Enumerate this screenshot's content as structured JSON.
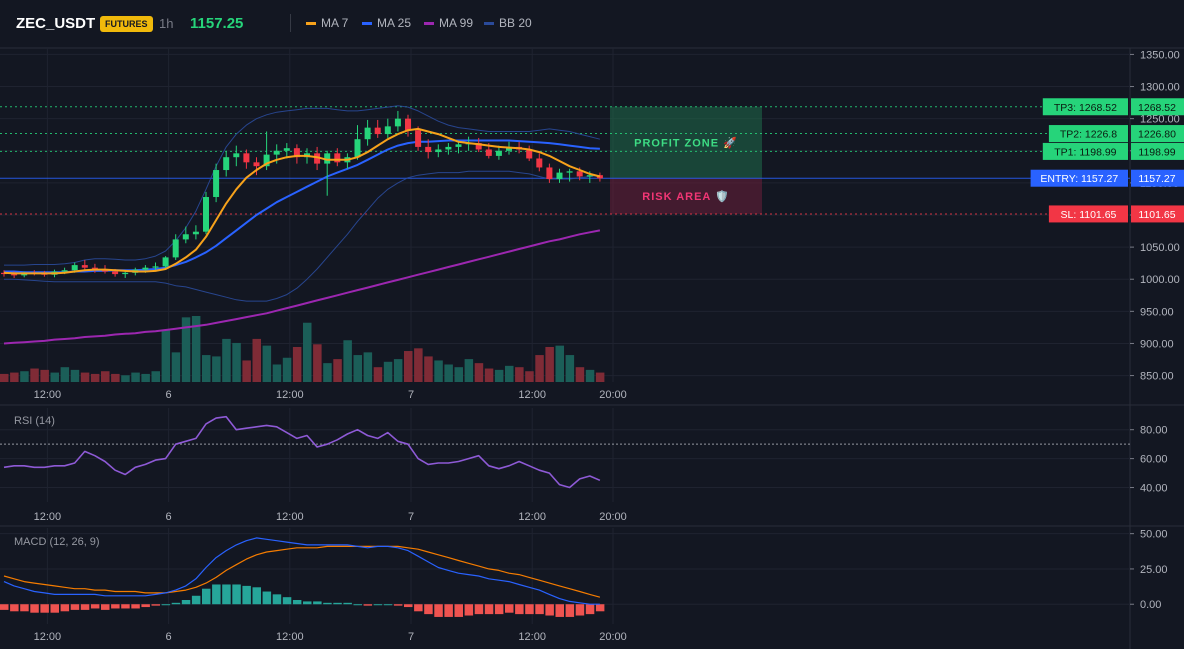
{
  "header": {
    "symbol": "ZEC_USDT",
    "badge": "FUTURES",
    "interval": "1h",
    "last_price": "1157.25",
    "legend": [
      {
        "label": "MA 7",
        "color": "#f7a21b"
      },
      {
        "label": "MA 25",
        "color": "#2962ff"
      },
      {
        "label": "MA 99",
        "color": "#9c27b0"
      },
      {
        "label": "BB 20",
        "color": "#2a4a9a"
      }
    ]
  },
  "colors": {
    "up": "#26d47a",
    "down": "#f23645",
    "vol_up": "#1b5e58",
    "vol_down": "#7f2b36",
    "grid": "#1f2330"
  },
  "chart_data": [
    {
      "type": "candlestick",
      "panel": "price",
      "ylim": [
        840,
        1360
      ],
      "y_ticks": [
        "1350.00",
        "1300.00",
        "1250.00",
        "1200.00",
        "1150.00",
        "1100.00",
        "1050.00",
        "1000.00",
        "950.00",
        "900.00",
        "850.00"
      ],
      "y_tick_values": [
        1350,
        1300,
        1250,
        1200,
        1150,
        1100,
        1050,
        1000,
        950,
        900,
        850
      ],
      "x_ticks": [
        {
          "label": "12:00",
          "index": 4
        },
        {
          "label": "6",
          "index": 16
        },
        {
          "label": "12:00",
          "index": 28
        },
        {
          "label": "7",
          "index": 40
        },
        {
          "label": "12:00",
          "index": 52
        },
        {
          "label": "20:00",
          "index": 60
        }
      ],
      "candles_ohlc": [
        [
          1010,
          1014,
          1004,
          1008
        ],
        [
          1008,
          1012,
          1002,
          1006
        ],
        [
          1006,
          1012,
          1003,
          1010
        ],
        [
          1010,
          1014,
          1006,
          1009
        ],
        [
          1009,
          1013,
          1004,
          1007
        ],
        [
          1007,
          1015,
          1003,
          1012
        ],
        [
          1012,
          1018,
          1008,
          1014
        ],
        [
          1014,
          1026,
          1010,
          1022
        ],
        [
          1022,
          1030,
          1014,
          1018
        ],
        [
          1018,
          1024,
          1010,
          1016
        ],
        [
          1016,
          1022,
          1009,
          1012
        ],
        [
          1012,
          1016,
          1004,
          1008
        ],
        [
          1008,
          1014,
          1002,
          1010
        ],
        [
          1010,
          1018,
          1006,
          1015
        ],
        [
          1015,
          1022,
          1010,
          1018
        ],
        [
          1018,
          1026,
          1012,
          1020
        ],
        [
          1020,
          1036,
          1016,
          1034
        ],
        [
          1034,
          1070,
          1030,
          1062
        ],
        [
          1062,
          1082,
          1056,
          1070
        ],
        [
          1070,
          1084,
          1062,
          1074
        ],
        [
          1074,
          1136,
          1070,
          1128
        ],
        [
          1128,
          1180,
          1120,
          1170
        ],
        [
          1170,
          1200,
          1160,
          1190
        ],
        [
          1190,
          1208,
          1176,
          1196
        ],
        [
          1196,
          1202,
          1172,
          1182
        ],
        [
          1182,
          1190,
          1162,
          1176
        ],
        [
          1176,
          1230,
          1170,
          1194
        ],
        [
          1194,
          1210,
          1180,
          1200
        ],
        [
          1200,
          1212,
          1188,
          1204
        ],
        [
          1204,
          1210,
          1180,
          1190
        ],
        [
          1190,
          1204,
          1180,
          1196
        ],
        [
          1196,
          1206,
          1170,
          1180
        ],
        [
          1180,
          1200,
          1130,
          1196
        ],
        [
          1196,
          1204,
          1176,
          1182
        ],
        [
          1182,
          1196,
          1172,
          1190
        ],
        [
          1190,
          1240,
          1186,
          1218
        ],
        [
          1218,
          1248,
          1208,
          1236
        ],
        [
          1236,
          1248,
          1220,
          1226
        ],
        [
          1226,
          1250,
          1220,
          1238
        ],
        [
          1238,
          1262,
          1230,
          1250
        ],
        [
          1250,
          1256,
          1222,
          1232
        ],
        [
          1232,
          1238,
          1200,
          1206
        ],
        [
          1206,
          1218,
          1188,
          1198
        ],
        [
          1198,
          1210,
          1190,
          1202
        ],
        [
          1202,
          1212,
          1194,
          1206
        ],
        [
          1206,
          1216,
          1196,
          1210
        ],
        [
          1210,
          1222,
          1200,
          1212
        ],
        [
          1212,
          1220,
          1198,
          1202
        ],
        [
          1202,
          1212,
          1188,
          1192
        ],
        [
          1192,
          1208,
          1186,
          1200
        ],
        [
          1200,
          1214,
          1194,
          1206
        ],
        [
          1206,
          1214,
          1196,
          1202
        ],
        [
          1202,
          1208,
          1184,
          1188
        ],
        [
          1188,
          1196,
          1168,
          1174
        ],
        [
          1174,
          1180,
          1150,
          1156
        ],
        [
          1156,
          1172,
          1150,
          1166
        ],
        [
          1166,
          1172,
          1152,
          1168
        ],
        [
          1168,
          1174,
          1154,
          1160
        ],
        [
          1160,
          1168,
          1150,
          1162
        ],
        [
          1162,
          1166,
          1152,
          1157
        ]
      ],
      "volume": [
        12,
        14,
        16,
        20,
        18,
        14,
        22,
        18,
        14,
        12,
        16,
        12,
        10,
        14,
        12,
        16,
        78,
        44,
        96,
        98,
        40,
        38,
        64,
        58,
        32,
        64,
        54,
        26,
        36,
        52,
        88,
        56,
        28,
        34,
        62,
        40,
        44,
        22,
        30,
        34,
        46,
        50,
        38,
        32,
        26,
        22,
        34,
        28,
        20,
        18,
        24,
        22,
        16,
        40,
        52,
        54,
        40,
        22,
        18,
        14
      ],
      "lines": {
        "MA 7": [
          1010,
          1009,
          1009,
          1009,
          1009,
          1009,
          1010,
          1012,
          1014,
          1015,
          1015,
          1014,
          1013,
          1012,
          1012,
          1013,
          1016,
          1024,
          1034,
          1046,
          1066,
          1092,
          1118,
          1140,
          1158,
          1170,
          1180,
          1186,
          1190,
          1192,
          1192,
          1190,
          1186,
          1186,
          1186,
          1190,
          1198,
          1208,
          1218,
          1226,
          1232,
          1234,
          1230,
          1226,
          1220,
          1214,
          1212,
          1210,
          1208,
          1206,
          1205,
          1204,
          1202,
          1198,
          1192,
          1184,
          1176,
          1170,
          1164,
          1160
        ],
        "MA 25": [
          1012,
          1012,
          1011,
          1011,
          1011,
          1011,
          1011,
          1012,
          1012,
          1013,
          1013,
          1014,
          1014,
          1014,
          1015,
          1016,
          1018,
          1022,
          1027,
          1034,
          1042,
          1052,
          1064,
          1076,
          1088,
          1100,
          1110,
          1120,
          1128,
          1136,
          1144,
          1152,
          1160,
          1166,
          1172,
          1178,
          1186,
          1194,
          1202,
          1208,
          1212,
          1214,
          1214,
          1215,
          1216,
          1216,
          1216,
          1216,
          1216,
          1216,
          1216,
          1215,
          1214,
          1213,
          1212,
          1210,
          1208,
          1206,
          1204,
          1203
        ],
        "MA 99": [
          900,
          901,
          902,
          903,
          904,
          906,
          907,
          908,
          910,
          911,
          912,
          914,
          915,
          916,
          918,
          919,
          921,
          923,
          925,
          927,
          929,
          932,
          935,
          938,
          941,
          944,
          947,
          951,
          955,
          959,
          963,
          967,
          971,
          975,
          979,
          983,
          987,
          991,
          995,
          999,
          1003,
          1007,
          1011,
          1015,
          1019,
          1023,
          1027,
          1031,
          1035,
          1039,
          1043,
          1047,
          1051,
          1055,
          1059,
          1062,
          1066,
          1070,
          1073,
          1076
        ],
        "BB upper": [
          1022,
          1022,
          1022,
          1023,
          1023,
          1023,
          1024,
          1026,
          1030,
          1032,
          1032,
          1031,
          1030,
          1030,
          1032,
          1036,
          1044,
          1060,
          1080,
          1106,
          1140,
          1176,
          1206,
          1226,
          1240,
          1250,
          1256,
          1260,
          1262,
          1264,
          1266,
          1266,
          1266,
          1264,
          1262,
          1262,
          1264,
          1266,
          1268,
          1270,
          1268,
          1262,
          1254,
          1246,
          1240,
          1236,
          1234,
          1232,
          1230,
          1230,
          1230,
          1230,
          1230,
          1232,
          1234,
          1232,
          1230,
          1226,
          1222,
          1218
        ],
        "BB lower": [
          1000,
          1000,
          999,
          998,
          997,
          996,
          996,
          996,
          996,
          996,
          996,
          996,
          996,
          996,
          996,
          996,
          994,
          990,
          988,
          984,
          980,
          976,
          972,
          968,
          966,
          966,
          966,
          970,
          976,
          986,
          1000,
          1016,
          1034,
          1052,
          1070,
          1090,
          1108,
          1126,
          1140,
          1150,
          1158,
          1162,
          1164,
          1166,
          1166,
          1166,
          1168,
          1168,
          1168,
          1168,
          1168,
          1166,
          1164,
          1160,
          1156,
          1156,
          1156,
          1158,
          1160,
          1162
        ]
      },
      "levels": [
        {
          "name": "TP3",
          "value": 1268.52,
          "tag": "TP3: 1268.52",
          "axis": "1268.52",
          "color": "#26d47a"
        },
        {
          "name": "TP2",
          "value": 1226.8,
          "tag": "TP2: 1226.8",
          "axis": "1226.80",
          "color": "#26d47a"
        },
        {
          "name": "TP1",
          "value": 1198.99,
          "tag": "TP1: 1198.99",
          "axis": "1198.99",
          "color": "#26d47a"
        },
        {
          "name": "ENTRY",
          "value": 1157.27,
          "tag": "ENTRY: 1157.27",
          "axis": "1157.27",
          "color": "#2962ff"
        },
        {
          "name": "SL",
          "value": 1101.65,
          "tag": "SL: 1101.65",
          "axis": "1101.65",
          "color": "#f23645"
        }
      ],
      "zones": {
        "profit_label": "PROFIT ZONE 🚀",
        "risk_label": "RISK AREA 🛡️"
      }
    },
    {
      "type": "line",
      "panel": "rsi",
      "title": "RSI (14)",
      "ylim": [
        30,
        95
      ],
      "y_ticks": [
        "80.00",
        "60.00",
        "40.00"
      ],
      "y_tick_values": [
        80,
        60,
        40
      ],
      "overbought": 70,
      "values": [
        54,
        55,
        55,
        54,
        54,
        55,
        55,
        57,
        65,
        62,
        58,
        52,
        49,
        54,
        56,
        59,
        60,
        70,
        72,
        74,
        84,
        88,
        89,
        80,
        81,
        82,
        83,
        82,
        78,
        74,
        76,
        68,
        70,
        73,
        77,
        80,
        76,
        74,
        78,
        72,
        70,
        60,
        56,
        57,
        57,
        58,
        60,
        62,
        55,
        53,
        55,
        58,
        55,
        52,
        50,
        42,
        40,
        46,
        48,
        45
      ]
    },
    {
      "type": "line",
      "panel": "macd",
      "title": "MACD (12, 26, 9)",
      "ylim": [
        -14,
        54
      ],
      "y_ticks": [
        "50.00",
        "25.00",
        "0.00"
      ],
      "y_tick_values": [
        50,
        25,
        0
      ],
      "macd": [
        16,
        13,
        11,
        9,
        8,
        7,
        7,
        7,
        7,
        7,
        6,
        6,
        6,
        6,
        6,
        7,
        8,
        10,
        13,
        18,
        26,
        33,
        38,
        42,
        45,
        47,
        46,
        45,
        44,
        43,
        42,
        42,
        42,
        42,
        42,
        41,
        40,
        41,
        41,
        40,
        38,
        34,
        30,
        26,
        24,
        22,
        21,
        20,
        18,
        17,
        16,
        14,
        12,
        10,
        7,
        4,
        2,
        1,
        0,
        0
      ],
      "signal": [
        20,
        18,
        16,
        15,
        14,
        13,
        12,
        11,
        11,
        10,
        10,
        9,
        9,
        9,
        8,
        8,
        8,
        9,
        10,
        12,
        15,
        19,
        24,
        28,
        32,
        35,
        37,
        38,
        39,
        40,
        40,
        40,
        41,
        41,
        41,
        41,
        41,
        41,
        41,
        41,
        40,
        39,
        37,
        35,
        33,
        31,
        29,
        27,
        25,
        24,
        22,
        21,
        19,
        17,
        15,
        13,
        11,
        9,
        7,
        5
      ],
      "histogram": [
        -4,
        -5,
        -5,
        -6,
        -6,
        -6,
        -5,
        -4,
        -4,
        -3,
        -4,
        -3,
        -3,
        -3,
        -2,
        -1,
        0,
        1,
        3,
        6,
        11,
        14,
        14,
        14,
        13,
        12,
        9,
        7,
        5,
        3,
        2,
        2,
        1,
        1,
        1,
        0,
        -1,
        0,
        0,
        -1,
        -2,
        -5,
        -7,
        -9,
        -9,
        -9,
        -8,
        -7,
        -7,
        -7,
        -6,
        -7,
        -7,
        -7,
        -8,
        -9,
        -9,
        -8,
        -7,
        -5
      ]
    }
  ]
}
